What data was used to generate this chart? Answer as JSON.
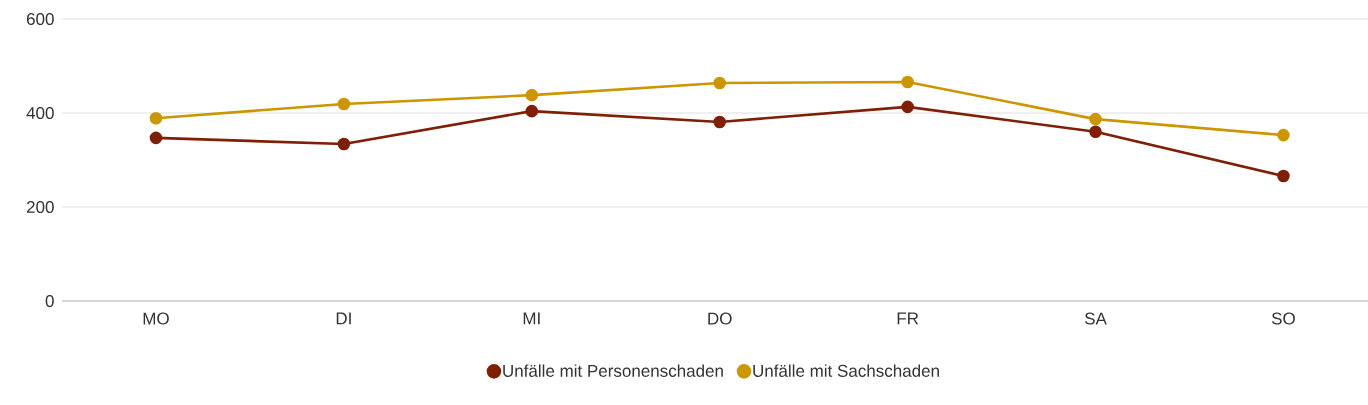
{
  "chart_data": {
    "type": "line",
    "categories": [
      "MO",
      "DI",
      "MI",
      "DO",
      "FR",
      "SA",
      "SO"
    ],
    "series": [
      {
        "name": "Unfälle mit Personenschaden",
        "color": "#7f1f06",
        "values": [
          347,
          334,
          404,
          381,
          413,
          360,
          266
        ]
      },
      {
        "name": "Unfälle mit Sachschaden",
        "color": "#cc9600",
        "values": [
          389,
          419,
          438,
          464,
          466,
          387,
          353
        ]
      }
    ],
    "ylim": [
      0,
      600
    ],
    "yticks": [
      0,
      200,
      400,
      600
    ],
    "grid": "y",
    "legend": "bottom",
    "marker": "circle",
    "line_style": "solid"
  }
}
